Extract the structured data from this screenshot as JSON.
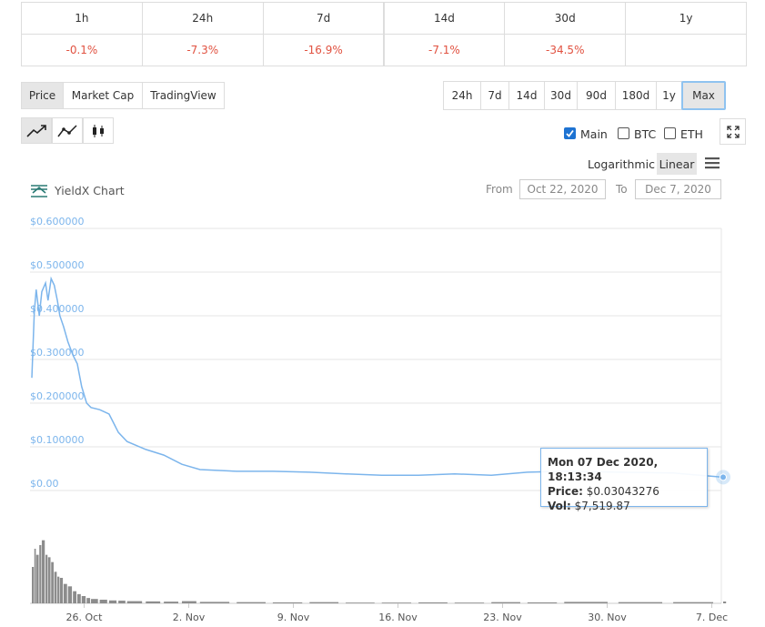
{
  "change_table": {
    "headers": [
      "1h",
      "24h",
      "7d",
      "14d",
      "30d",
      "1y"
    ],
    "values": [
      "-0.1%",
      "-7.3%",
      "-16.9%",
      "-7.1%",
      "-34.5%"
    ]
  },
  "tabs": [
    "Price",
    "Market Cap",
    "TradingView"
  ],
  "ranges": [
    "24h",
    "7d",
    "14d",
    "30d",
    "90d",
    "180d",
    "1y",
    "Max"
  ],
  "toggles": [
    {
      "label": "Main",
      "checked": true
    },
    {
      "label": "BTC",
      "checked": false
    },
    {
      "label": "ETH",
      "checked": false
    }
  ],
  "scale_options": [
    "Logarithmic",
    "Linear"
  ],
  "chart_title": "YieldX Chart",
  "date_range": {
    "from_label": "From",
    "from": "Oct 22, 2020",
    "to_label": "To",
    "to": "Dec 7, 2020"
  },
  "tooltip": {
    "date": "Mon 07 Dec 2020, 18:13:34",
    "price_label": "Price:",
    "price": "$0.03043276",
    "vol_label": "Vol:",
    "vol": "$7,519.87"
  },
  "chart_data": {
    "type": "line",
    "x": [
      "2020-10-22T12:00",
      "2020-10-22T16:00",
      "2020-10-22T19:00",
      "2020-10-23T00:00",
      "2020-10-23T04:00",
      "2020-10-23T10:00",
      "2020-10-23T14:00",
      "2020-10-23T19:00",
      "2020-10-24T00:00",
      "2020-10-24T05:00",
      "2020-10-24T09:00",
      "2020-10-24T15:00",
      "2020-10-24T22:00",
      "2020-10-25T06:00",
      "2020-10-25T13:00",
      "2020-10-25T20:00",
      "2020-10-26T04:00",
      "2020-10-26T11:00",
      "2020-10-27T01:00",
      "2020-10-27T16:00",
      "2020-10-28T07:00",
      "2020-10-28T21:00",
      "2020-10-30T03:00",
      "2020-10-31T08:00",
      "2020-11-01T13:00",
      "2020-11-02T18:00",
      "2020-11-05T05:00",
      "2020-11-07T15:00",
      "2020-11-10T02:00",
      "2020-11-12T12:00",
      "2020-11-14T22:00",
      "2020-11-17T09:00",
      "2020-11-19T19:00",
      "2020-11-22T06:00",
      "2020-11-24T16:00",
      "2020-11-27T03:00",
      "2020-11-30T18:00",
      "2020-12-04T10:00",
      "2020-12-07T18:13"
    ],
    "series": [
      {
        "color": "#7cb5ec",
        "values": [
          0.258,
          0.41,
          0.46,
          0.4,
          0.455,
          0.475,
          0.435,
          0.485,
          0.47,
          0.435,
          0.4,
          0.375,
          0.34,
          0.31,
          0.29,
          0.238,
          0.2,
          0.19,
          0.185,
          0.175,
          0.133,
          0.112,
          0.094,
          0.081,
          0.06,
          0.048,
          0.044,
          0.044,
          0.042,
          0.038,
          0.035,
          0.035,
          0.038,
          0.035,
          0.042,
          0.044,
          0.042,
          0.04,
          0.03043276
        ]
      }
    ],
    "volume": {
      "color": "#8c8c8c",
      "values": [
        150000,
        225000,
        200000,
        240000,
        260000,
        200000,
        190000,
        170000,
        130000,
        110000,
        105000,
        80000,
        70000,
        50000,
        38000,
        30000,
        22000,
        18000,
        15000,
        12000,
        11000,
        9000,
        8000,
        7000,
        9000,
        6000,
        5000,
        4000,
        5000,
        3000,
        3000,
        4000,
        3000,
        5000,
        4000,
        6000,
        5000,
        5000,
        7519.87
      ]
    },
    "volume_ylim": [
      0,
      300000
    ],
    "xlim": [
      "2020-10-22T12:00",
      "2020-12-07T18:13"
    ],
    "xticks": [
      {
        "value": "2020-10-26",
        "label": "26. Oct"
      },
      {
        "value": "2020-11-02",
        "label": "2. Nov"
      },
      {
        "value": "2020-11-09",
        "label": "9. Nov"
      },
      {
        "value": "2020-11-16",
        "label": "16. Nov"
      },
      {
        "value": "2020-11-23",
        "label": "23. Nov"
      },
      {
        "value": "2020-11-30",
        "label": "30. Nov"
      },
      {
        "value": "2020-12-07",
        "label": "7. Dec"
      }
    ],
    "ylim": [
      0,
      0.6
    ],
    "yticks": [
      {
        "value": 0,
        "label": "$0.00"
      },
      {
        "value": 0.1,
        "label": "$0.100000"
      },
      {
        "value": 0.2,
        "label": "$0.200000"
      },
      {
        "value": 0.3,
        "label": "$0.300000"
      },
      {
        "value": 0.4,
        "label": "$0.400000"
      },
      {
        "value": 0.5,
        "label": "$0.500000"
      },
      {
        "value": 0.6,
        "label": "$0.600000"
      }
    ],
    "grid": true
  }
}
